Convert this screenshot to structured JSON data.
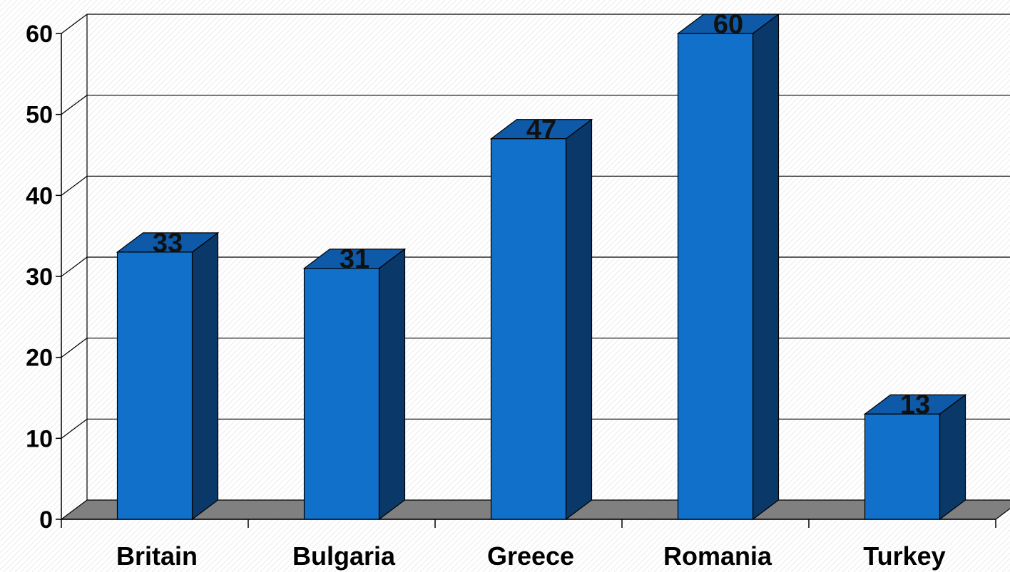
{
  "chart_data": {
    "type": "bar",
    "categories": [
      "Britain",
      "Bulgaria",
      "Greece",
      "Romania",
      "Turkey"
    ],
    "values": [
      33,
      31,
      47,
      60,
      13
    ],
    "data_labels": [
      "33",
      "31",
      "47",
      "60",
      "13"
    ],
    "yticks": [
      "0",
      "10",
      "20",
      "30",
      "40",
      "50",
      "60"
    ],
    "ylim": [
      0,
      60
    ],
    "grid": true,
    "style": "3d",
    "legend": "none",
    "title": "",
    "xlabel": "",
    "ylabel": ""
  },
  "colors": {
    "bar_front": "#1170c9",
    "bar_side": "#0a3868",
    "bar_top": "#0f5aa8",
    "floor": "#808080",
    "grid": "#000000",
    "background_pattern": "#ececec"
  }
}
